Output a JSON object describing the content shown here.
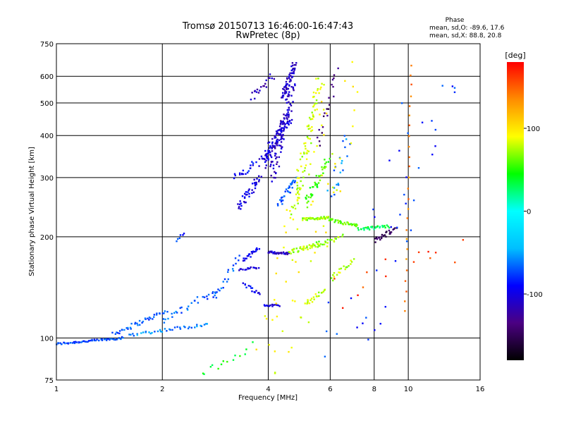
{
  "chart_data": {
    "type": "scatter",
    "title_line1": "Tromsø 20150713 16:46:00-16:47:43",
    "title_line2": "RwPretec (8p)",
    "info": {
      "heading": "Phase",
      "line1": "mean, sd,O: -89.6, 17.6",
      "line2": "mean, sd,X: 88.8, 20.8"
    },
    "xlabel": "Frequency [MHz]",
    "ylabel": "Stationary phase Virtual Height [km]",
    "x_scale": "log",
    "y_scale": "log",
    "xlim": [
      1,
      16
    ],
    "ylim": [
      75,
      750
    ],
    "x_ticks": [
      1,
      2,
      4,
      6,
      8,
      10,
      16
    ],
    "x_tick_labels": [
      "1",
      "2",
      "4",
      "6",
      "8",
      "10",
      "16"
    ],
    "y_ticks": [
      75,
      100,
      200,
      300,
      400,
      500,
      600,
      750
    ],
    "y_tick_labels": [
      "75",
      "100",
      "200",
      "300",
      "400",
      "500",
      "600",
      "750"
    ],
    "grid": true,
    "colorbar": {
      "label": "[deg]",
      "range": [
        -180,
        180
      ],
      "ticks": [
        100,
        0,
        -100
      ],
      "tick_labels": [
        "100",
        "0",
        "-100"
      ],
      "stops": [
        "#000000",
        "#4b0082",
        "#0000ff",
        "#00bfff",
        "#00ffff",
        "#00ff00",
        "#ffff00",
        "#ff8c00",
        "#ff0000"
      ]
    },
    "traces": [
      {
        "f": [
          1.0,
          1.55
        ],
        "h": [
          96,
          100
        ],
        "phase": -75,
        "n": 60,
        "jit": 0.01
      },
      {
        "f": [
          1.45,
          2.05
        ],
        "h": [
          103,
          120
        ],
        "phase": -70,
        "n": 40,
        "jit": 0.02
      },
      {
        "f": [
          1.6,
          2.7
        ],
        "h": [
          102,
          110
        ],
        "phase": -60,
        "n": 40,
        "jit": 0.015
      },
      {
        "f": [
          2.0,
          2.9
        ],
        "h": [
          112,
          140
        ],
        "phase": -65,
        "n": 30,
        "jit": 0.03
      },
      {
        "f": [
          2.8,
          3.3
        ],
        "h": [
          130,
          175
        ],
        "phase": -70,
        "n": 20,
        "jit": 0.03
      },
      {
        "f": [
          3.4,
          3.75
        ],
        "h": [
          170,
          185
        ],
        "phase": -100,
        "n": 20,
        "jit": 0.015
      },
      {
        "f": [
          3.3,
          3.75
        ],
        "h": [
          160,
          162
        ],
        "phase": -105,
        "n": 15,
        "jit": 0.01
      },
      {
        "f": [
          3.4,
          3.8
        ],
        "h": [
          145,
          135
        ],
        "phase": -95,
        "n": 15,
        "jit": 0.015
      },
      {
        "f": [
          3.9,
          4.3
        ],
        "h": [
          125,
          125
        ],
        "phase": -95,
        "n": 15,
        "jit": 0.01
      },
      {
        "f": [
          3.3,
          3.8
        ],
        "h": [
          245,
          300
        ],
        "phase": -100,
        "n": 40,
        "jit": 0.04
      },
      {
        "f": [
          3.85,
          4.6
        ],
        "h": [
          330,
          460
        ],
        "phase": -105,
        "n": 110,
        "jit": 0.05
      },
      {
        "f": [
          4.1,
          4.7
        ],
        "h": [
          300,
          560
        ],
        "phase": -110,
        "n": 80,
        "jit": 0.05
      },
      {
        "f": [
          4.4,
          4.75
        ],
        "h": [
          520,
          650
        ],
        "phase": -110,
        "n": 60,
        "jit": 0.03
      },
      {
        "f": [
          3.6,
          4.1
        ],
        "h": [
          520,
          600
        ],
        "phase": -115,
        "n": 20,
        "jit": 0.03
      },
      {
        "f": [
          3.2,
          3.7
        ],
        "h": [
          300,
          330
        ],
        "phase": -90,
        "n": 20,
        "jit": 0.03
      },
      {
        "f": [
          4.3,
          4.8
        ],
        "h": [
          250,
          300
        ],
        "phase": -70,
        "n": 30,
        "jit": 0.03
      },
      {
        "f": [
          4.0,
          4.6
        ],
        "h": [
          180,
          178
        ],
        "phase": -110,
        "n": 30,
        "jit": 0.01
      },
      {
        "f": [
          4.7,
          5.6
        ],
        "h": [
          230,
          580
        ],
        "phase": 80,
        "n": 90,
        "jit": 0.05
      },
      {
        "f": [
          5.1,
          5.9
        ],
        "h": [
          250,
          340
        ],
        "phase": 55,
        "n": 40,
        "jit": 0.03
      },
      {
        "f": [
          5.0,
          5.9
        ],
        "h": [
          225,
          228
        ],
        "phase": 70,
        "n": 40,
        "jit": 0.012
      },
      {
        "f": [
          5.9,
          7.2
        ],
        "h": [
          225,
          215
        ],
        "phase": 65,
        "n": 35,
        "jit": 0.015
      },
      {
        "f": [
          7.2,
          8.8
        ],
        "h": [
          210,
          215
        ],
        "phase": 30,
        "n": 30,
        "jit": 0.015
      },
      {
        "f": [
          8.0,
          9.2
        ],
        "h": [
          195,
          210
        ],
        "phase": -150,
        "n": 25,
        "jit": 0.02
      },
      {
        "f": [
          4.6,
          5.6
        ],
        "h": [
          180,
          190
        ],
        "phase": 75,
        "n": 40,
        "jit": 0.02
      },
      {
        "f": [
          5.5,
          6.5
        ],
        "h": [
          190,
          200
        ],
        "phase": 70,
        "n": 20,
        "jit": 0.02
      },
      {
        "f": [
          5.1,
          5.8
        ],
        "h": [
          125,
          140
        ],
        "phase": 80,
        "n": 20,
        "jit": 0.02
      },
      {
        "f": [
          6.0,
          7.0
        ],
        "h": [
          150,
          170
        ],
        "phase": 75,
        "n": 20,
        "jit": 0.03
      },
      {
        "f": [
          6.0,
          6.8
        ],
        "h": [
          260,
          400
        ],
        "phase": -60,
        "n": 20,
        "jit": 0.05
      },
      {
        "f": [
          5.5,
          6.3
        ],
        "h": [
          380,
          620
        ],
        "phase": -140,
        "n": 20,
        "jit": 0.04
      },
      {
        "f": [
          2.2,
          2.3
        ],
        "h": [
          195,
          205
        ],
        "phase": -80,
        "n": 6,
        "jit": 0.01
      },
      {
        "f": [
          2.6,
          3.6
        ],
        "h": [
          78,
          95
        ],
        "phase": 40,
        "n": 14,
        "jit": 0.04
      },
      {
        "f": [
          4.2,
          6.5
        ],
        "h": [
          80,
          600
        ],
        "phase": 90,
        "n": 70,
        "jit": 0.3
      },
      {
        "f": [
          6.5,
          12.5
        ],
        "h": [
          85,
          650
        ],
        "phase": -80,
        "n": 40,
        "jit": 0.35
      },
      {
        "f": [
          9.8,
          10.2
        ],
        "h": [
          120,
          650
        ],
        "phase": 140,
        "n": 25,
        "jit": 0.01
      },
      {
        "f": [
          6.2,
          14.0
        ],
        "h": [
          130,
          200
        ],
        "phase": 160,
        "n": 14,
        "jit": 0.2
      }
    ]
  }
}
